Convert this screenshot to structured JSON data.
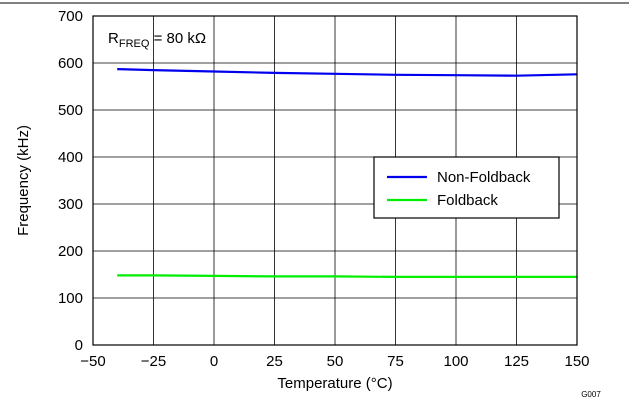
{
  "chart_data": {
    "type": "line",
    "title": "",
    "xlabel": "Temperature (°C)",
    "ylabel": "Frequency (kHz)",
    "xlim": [
      -50,
      150
    ],
    "ylim": [
      0,
      700
    ],
    "xticks": [
      -50,
      -25,
      0,
      25,
      50,
      75,
      100,
      125,
      150
    ],
    "yticks": [
      0,
      100,
      200,
      300,
      400,
      500,
      600,
      700
    ],
    "xtick_labels": [
      "−50",
      "−25",
      "0",
      "25",
      "50",
      "75",
      "100",
      "125",
      "150"
    ],
    "ytick_labels": [
      "0",
      "100",
      "200",
      "300",
      "400",
      "500",
      "600",
      "700"
    ],
    "grid": true,
    "legend_placement": "center-right",
    "annotation": {
      "prefix": "R",
      "subscript": "FREQ",
      "suffix": " = 80 kΩ"
    },
    "figure_id": "G007",
    "series": [
      {
        "name": "Non-Foldback",
        "color": "#0000ee",
        "x": [
          -40,
          -25,
          0,
          25,
          50,
          75,
          100,
          125,
          150
        ],
        "y": [
          587,
          585,
          582,
          579,
          577,
          575,
          574,
          573,
          576
        ]
      },
      {
        "name": "Foldback",
        "color": "#00ee00",
        "x": [
          -40,
          -25,
          0,
          25,
          50,
          75,
          100,
          125,
          150
        ],
        "y": [
          148,
          148,
          147,
          146,
          146,
          145,
          145,
          145,
          145
        ]
      }
    ]
  }
}
